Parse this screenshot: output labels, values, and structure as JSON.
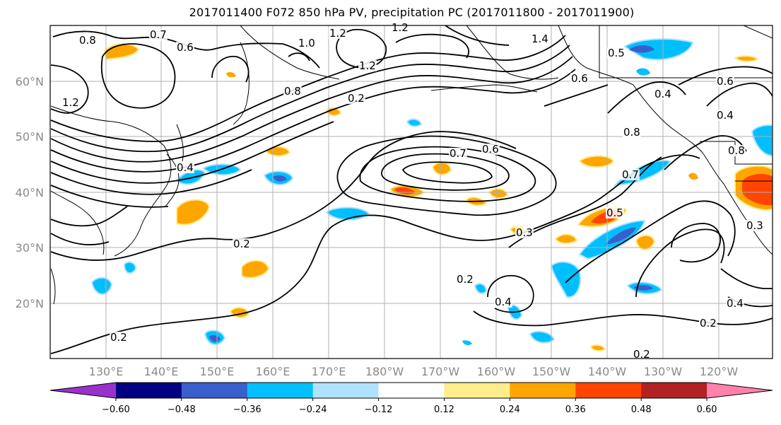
{
  "title": "2017011400 F072 850 hPa PV, precipitation PC (2017011800 - 2017011900)",
  "lon_labels": [
    "130°E",
    "140°E",
    "150°E",
    "160°E",
    "170°E",
    "180°W",
    "170°W",
    "160°W",
    "150°W",
    "140°W",
    "130°W",
    "120°W"
  ],
  "lat_labels": [
    "60°N",
    "50°N",
    "40°N",
    "30°N",
    "20°N"
  ],
  "contour_labels": [
    "0.8",
    "0.7",
    "0.6",
    "1.2",
    "1.0",
    "1.2",
    "1.4",
    "1.2",
    "1.2",
    "0.8",
    "0.2",
    "0.6",
    "0.4",
    "0.6",
    "0.4",
    "0.7",
    "0.6",
    "0.8",
    "0.7",
    "0.4",
    "0.5",
    "0.3",
    "0.2",
    "0.2",
    "0.4",
    "0.2",
    "0.2",
    "0.2",
    "0.4",
    "0.3",
    "0.8",
    "0.5"
  ],
  "colorbar": {
    "colors": [
      "#9932cc",
      "#000080",
      "#3a5fcd",
      "#00bfff",
      "#b0e2ff",
      "#ffffff",
      "#ffec8b",
      "#ffa500",
      "#ff4500",
      "#b22222",
      "#ff82ab"
    ],
    "tick_labels": [
      "−0.60",
      "−0.48",
      "−0.36",
      "−0.24",
      "−0.12",
      "0.12",
      "0.24",
      "0.36",
      "0.48",
      "0.60"
    ]
  },
  "fill_colors": {
    "orange": "#ffa500",
    "yellow": "#ffec8b",
    "red": "#ff4500",
    "blue": "#00bfff",
    "lightblue": "#b0e2ff",
    "darkblue": "#3a5fcd"
  }
}
